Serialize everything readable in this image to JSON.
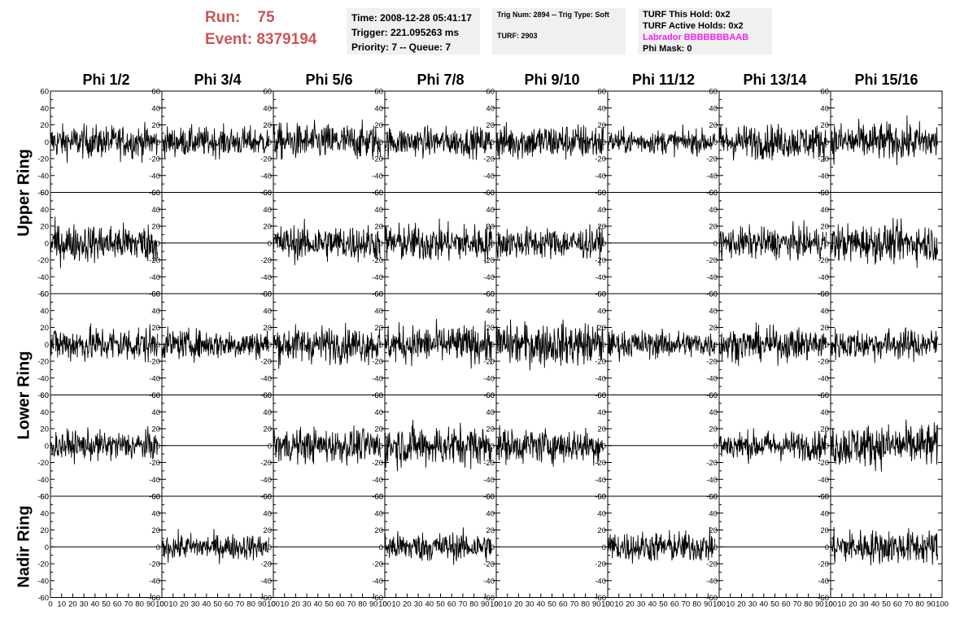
{
  "header": {
    "run_label": "Run:",
    "run_value": "75",
    "event_label": "Event:",
    "event_value": "8379194"
  },
  "info_time": {
    "time": "Time: 2008-12-28 05:41:17",
    "trigger": "Trigger: 221.095263 ms",
    "priority": "Priority: 7 -- Queue: 7"
  },
  "info_trig": {
    "trig": "Trig Num: 2894 -- Trig Type: Soft",
    "turf": "TURF: 2903"
  },
  "info_turf": {
    "hold": "TURF This Hold: 0x2",
    "active": "TURF Active Holds: 0x2",
    "labrador": "Labrador BBBBBBBAAB",
    "phimask": "Phi Mask: 0"
  },
  "chart_data": {
    "type": "line",
    "columns": [
      "Phi 1/2",
      "Phi 3/4",
      "Phi 5/6",
      "Phi 7/8",
      "Phi 9/10",
      "Phi 11/12",
      "Phi 13/14",
      "Phi 15/16"
    ],
    "ring_labels": [
      "Upper Ring",
      "Lower Ring",
      "Nadir Ring"
    ],
    "ring_row_spans": [
      [
        0,
        1
      ],
      [
        2,
        3
      ],
      [
        4
      ]
    ],
    "xlim": [
      0,
      100
    ],
    "ylim": [
      -60,
      60
    ],
    "yticks": [
      -60,
      -40,
      -20,
      0,
      20,
      40,
      60
    ],
    "xticks": [
      0,
      10,
      20,
      30,
      40,
      50,
      60,
      70,
      80,
      90,
      100
    ],
    "grid": false,
    "samples_per_trace": 256,
    "trace_x_range": [
      0,
      96
    ],
    "panels": [
      {
        "row": 0,
        "col": 0,
        "rms": 9.5,
        "flat": false
      },
      {
        "row": 0,
        "col": 1,
        "rms": 8.5,
        "flat": false
      },
      {
        "row": 0,
        "col": 2,
        "rms": 10.5,
        "flat": false
      },
      {
        "row": 0,
        "col": 3,
        "rms": 8.5,
        "flat": false
      },
      {
        "row": 0,
        "col": 4,
        "rms": 10.5,
        "flat": false
      },
      {
        "row": 0,
        "col": 5,
        "rms": 7.0,
        "flat": false
      },
      {
        "row": 0,
        "col": 6,
        "rms": 10.0,
        "flat": false
      },
      {
        "row": 0,
        "col": 7,
        "rms": 11.0,
        "flat": false
      },
      {
        "row": 1,
        "col": 0,
        "rms": 11.0,
        "flat": false
      },
      {
        "row": 1,
        "col": 1,
        "rms": 0,
        "flat": true
      },
      {
        "row": 1,
        "col": 2,
        "rms": 10.5,
        "flat": false
      },
      {
        "row": 1,
        "col": 3,
        "rms": 11.0,
        "flat": false
      },
      {
        "row": 1,
        "col": 4,
        "rms": 9.0,
        "flat": false
      },
      {
        "row": 1,
        "col": 5,
        "rms": 0,
        "flat": true
      },
      {
        "row": 1,
        "col": 6,
        "rms": 9.0,
        "flat": false
      },
      {
        "row": 1,
        "col": 7,
        "rms": 11.0,
        "flat": false
      },
      {
        "row": 2,
        "col": 0,
        "rms": 10.5,
        "flat": false
      },
      {
        "row": 2,
        "col": 1,
        "rms": 8.5,
        "flat": false
      },
      {
        "row": 2,
        "col": 2,
        "rms": 10.5,
        "flat": false
      },
      {
        "row": 2,
        "col": 3,
        "rms": 11.0,
        "flat": false
      },
      {
        "row": 2,
        "col": 4,
        "rms": 12.5,
        "flat": false
      },
      {
        "row": 2,
        "col": 5,
        "rms": 8.0,
        "flat": false
      },
      {
        "row": 2,
        "col": 6,
        "rms": 9.5,
        "flat": false
      },
      {
        "row": 2,
        "col": 7,
        "rms": 9.0,
        "flat": false
      },
      {
        "row": 3,
        "col": 0,
        "rms": 8.5,
        "flat": false
      },
      {
        "row": 3,
        "col": 1,
        "rms": 0,
        "flat": true
      },
      {
        "row": 3,
        "col": 2,
        "rms": 10.0,
        "flat": false
      },
      {
        "row": 3,
        "col": 3,
        "rms": 12.0,
        "flat": false
      },
      {
        "row": 3,
        "col": 4,
        "rms": 10.0,
        "flat": false
      },
      {
        "row": 3,
        "col": 5,
        "rms": 0,
        "flat": true
      },
      {
        "row": 3,
        "col": 6,
        "rms": 8.5,
        "flat": false
      },
      {
        "row": 3,
        "col": 7,
        "rms": 12.5,
        "flat": false
      },
      {
        "row": 4,
        "col": 0,
        "rms": 0,
        "flat": true
      },
      {
        "row": 4,
        "col": 1,
        "rms": 7.5,
        "flat": false
      },
      {
        "row": 4,
        "col": 2,
        "rms": 0,
        "flat": true
      },
      {
        "row": 4,
        "col": 3,
        "rms": 8.5,
        "flat": false
      },
      {
        "row": 4,
        "col": 4,
        "rms": 0,
        "flat": true
      },
      {
        "row": 4,
        "col": 5,
        "rms": 9.0,
        "flat": false
      },
      {
        "row": 4,
        "col": 6,
        "rms": 0,
        "flat": true
      },
      {
        "row": 4,
        "col": 7,
        "rms": 10.0,
        "flat": false
      }
    ]
  }
}
